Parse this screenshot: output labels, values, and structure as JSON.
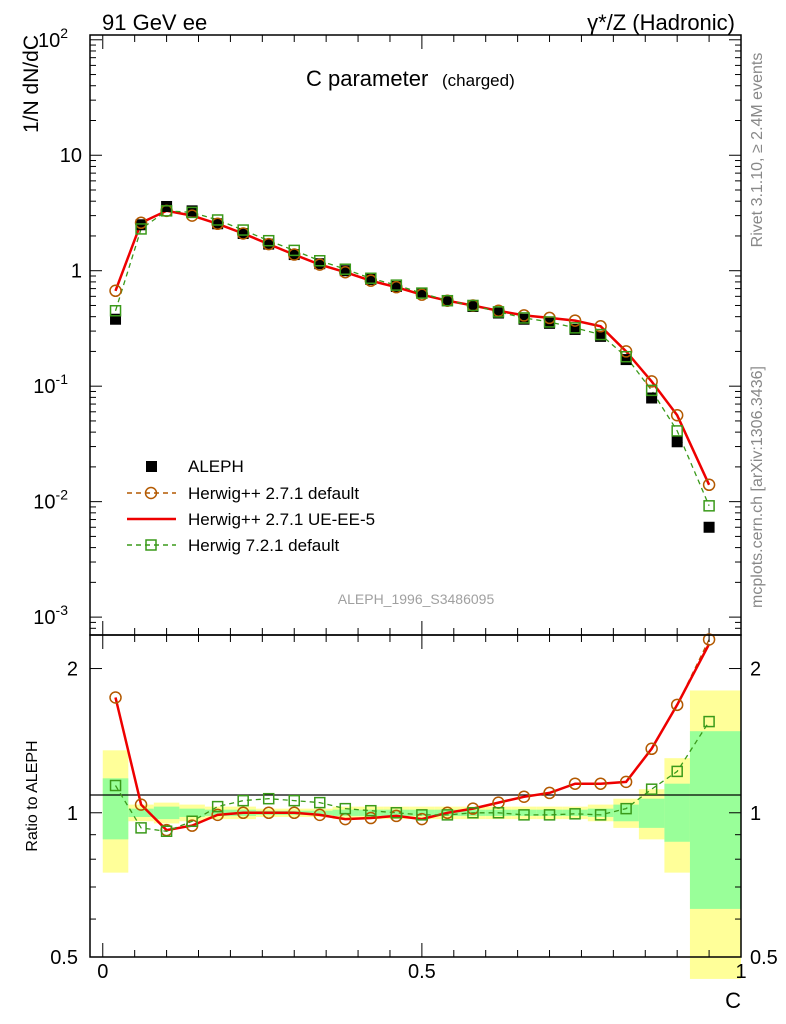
{
  "header": {
    "left": "91 GeV ee",
    "right": "γ*/Z (Hadronic)"
  },
  "side": {
    "rivet": "Rivet 3.1.10, ≥ 2.4M events",
    "mcplots": "mcplots.cern.ch [arXiv:1306.3436]"
  },
  "chart_data": [
    {
      "type": "line",
      "title": "C parameter",
      "subtitle": "(charged)",
      "ylabel": "1/N dN/dC",
      "yscale": "log",
      "ylim": [
        0.0007,
        110
      ],
      "xlim": [
        -0.02,
        1.0
      ],
      "yticks": [
        {
          "v": 0.001,
          "b": "10",
          "e": "-3"
        },
        {
          "v": 0.01,
          "b": "10",
          "e": "-2"
        },
        {
          "v": 0.1,
          "b": "10",
          "e": "-1"
        },
        {
          "v": 1,
          "b": "1",
          "e": ""
        },
        {
          "v": 10,
          "b": "10",
          "e": ""
        },
        {
          "v": 100,
          "b": "10",
          "e": "2"
        }
      ],
      "watermark": "ALEPH_1996_S3486095",
      "legend_position": "bottom-left",
      "x": [
        0.02,
        0.06,
        0.1,
        0.14,
        0.18,
        0.22,
        0.26,
        0.3,
        0.34,
        0.38,
        0.42,
        0.46,
        0.5,
        0.54,
        0.58,
        0.62,
        0.66,
        0.7,
        0.74,
        0.78,
        0.82,
        0.86,
        0.9,
        0.95
      ],
      "series": [
        {
          "name": "ALEPH",
          "marker": "square-filled",
          "color": "#000000",
          "values": [
            0.38,
            2.5,
            3.6,
            3.3,
            2.55,
            2.1,
            1.7,
            1.38,
            1.15,
            1.0,
            0.84,
            0.73,
            0.64,
            0.55,
            0.49,
            0.43,
            0.38,
            0.35,
            0.31,
            0.27,
            0.17,
            0.079,
            0.033,
            0.006
          ]
        },
        {
          "name": "Herwig++ 2.7.1 default",
          "marker": "circle-open",
          "color": "#b35900",
          "dash": "5,4",
          "values": [
            0.67,
            2.6,
            3.3,
            3.0,
            2.55,
            2.1,
            1.7,
            1.38,
            1.13,
            0.97,
            0.82,
            0.72,
            0.62,
            0.55,
            0.5,
            0.45,
            0.41,
            0.39,
            0.37,
            0.33,
            0.2,
            0.11,
            0.056,
            0.014
          ]
        },
        {
          "name": "Herwig++ 2.7.1 UE-EE-5",
          "marker": "none",
          "color": "#ee0000",
          "width": 2.5,
          "values": [
            0.67,
            2.6,
            3.3,
            3.0,
            2.55,
            2.1,
            1.7,
            1.38,
            1.13,
            0.97,
            0.82,
            0.72,
            0.62,
            0.55,
            0.5,
            0.45,
            0.41,
            0.39,
            0.37,
            0.33,
            0.2,
            0.11,
            0.056,
            0.014
          ]
        },
        {
          "name": "Herwig 7.2.1 default",
          "marker": "square-open",
          "color": "#3a9a1a",
          "dash": "5,4",
          "values": [
            0.45,
            2.3,
            3.3,
            3.2,
            2.75,
            2.25,
            1.82,
            1.5,
            1.22,
            1.03,
            0.86,
            0.75,
            0.64,
            0.55,
            0.5,
            0.44,
            0.39,
            0.36,
            0.32,
            0.28,
            0.18,
            0.092,
            0.041,
            0.0092
          ]
        }
      ]
    },
    {
      "type": "line",
      "ylabel": "Ratio to ALEPH",
      "xlabel": "C",
      "ylim": [
        0.5,
        2.0
      ],
      "xlim": [
        -0.02,
        1.0
      ],
      "yticks": [
        0.5,
        1,
        2
      ],
      "xticks": [
        {
          "v": 0,
          "label": "0"
        },
        {
          "v": 0.5,
          "label": "0.5"
        },
        {
          "v": 1,
          "label": "1"
        }
      ],
      "bands": {
        "edges": [
          0.0,
          0.04,
          0.08,
          0.12,
          0.16,
          0.2,
          0.24,
          0.28,
          0.32,
          0.36,
          0.4,
          0.44,
          0.48,
          0.52,
          0.56,
          0.6,
          0.64,
          0.68,
          0.72,
          0.76,
          0.8,
          0.84,
          0.88,
          0.92,
          1.0
        ],
        "yellow": [
          [
            0.75,
            1.35
          ],
          [
            0.96,
            1.04
          ],
          [
            0.95,
            1.05
          ],
          [
            0.96,
            1.04
          ],
          [
            0.97,
            1.03
          ],
          [
            0.97,
            1.03
          ],
          [
            0.98,
            1.02
          ],
          [
            0.98,
            1.02
          ],
          [
            0.98,
            1.02
          ],
          [
            0.97,
            1.03
          ],
          [
            0.97,
            1.03
          ],
          [
            0.97,
            1.03
          ],
          [
            0.97,
            1.03
          ],
          [
            0.97,
            1.03
          ],
          [
            0.97,
            1.03
          ],
          [
            0.97,
            1.03
          ],
          [
            0.97,
            1.03
          ],
          [
            0.97,
            1.03
          ],
          [
            0.97,
            1.03
          ],
          [
            0.96,
            1.04
          ],
          [
            0.93,
            1.07
          ],
          [
            0.88,
            1.12
          ],
          [
            0.75,
            1.3
          ],
          [
            0.45,
            1.8
          ]
        ],
        "green": [
          [
            0.88,
            1.18
          ],
          [
            0.98,
            1.02
          ],
          [
            0.97,
            1.03
          ],
          [
            0.98,
            1.02
          ],
          [
            0.985,
            1.015
          ],
          [
            0.985,
            1.015
          ],
          [
            0.99,
            1.01
          ],
          [
            0.99,
            1.01
          ],
          [
            0.99,
            1.01
          ],
          [
            0.985,
            1.015
          ],
          [
            0.985,
            1.015
          ],
          [
            0.985,
            1.015
          ],
          [
            0.985,
            1.015
          ],
          [
            0.985,
            1.015
          ],
          [
            0.985,
            1.015
          ],
          [
            0.985,
            1.015
          ],
          [
            0.985,
            1.015
          ],
          [
            0.985,
            1.015
          ],
          [
            0.985,
            1.015
          ],
          [
            0.98,
            1.02
          ],
          [
            0.96,
            1.04
          ],
          [
            0.93,
            1.07
          ],
          [
            0.87,
            1.15
          ],
          [
            0.63,
            1.48
          ]
        ]
      },
      "x": [
        0.02,
        0.06,
        0.1,
        0.14,
        0.18,
        0.22,
        0.26,
        0.3,
        0.34,
        0.38,
        0.42,
        0.46,
        0.5,
        0.54,
        0.58,
        0.62,
        0.66,
        0.7,
        0.74,
        0.78,
        0.82,
        0.86,
        0.9,
        0.95
      ],
      "series": [
        {
          "name": "Herwig++ 2.7.1 default",
          "marker": "circle-open",
          "color": "#b35900",
          "values": [
            1.74,
            1.04,
            0.92,
            0.94,
            0.99,
            1.0,
            1.0,
            1.0,
            0.99,
            0.97,
            0.975,
            0.985,
            0.97,
            1.0,
            1.02,
            1.05,
            1.08,
            1.1,
            1.15,
            1.15,
            1.16,
            1.36,
            1.68,
            2.3
          ]
        },
        {
          "name": "Herwig++ 2.7.1 UE-EE-5",
          "marker": "none",
          "color": "#ee0000",
          "values": [
            1.74,
            1.04,
            0.92,
            0.94,
            0.99,
            1.0,
            1.0,
            1.0,
            0.99,
            0.97,
            0.975,
            0.985,
            0.97,
            1.0,
            1.02,
            1.05,
            1.08,
            1.1,
            1.15,
            1.15,
            1.16,
            1.36,
            1.68,
            2.25
          ]
        },
        {
          "name": "Herwig 7.2.1 default",
          "marker": "square-open",
          "color": "#3a9a1a",
          "values": [
            1.14,
            0.93,
            0.915,
            0.96,
            1.03,
            1.06,
            1.07,
            1.06,
            1.05,
            1.02,
            1.01,
            1.0,
            0.99,
            0.99,
            1.0,
            1.0,
            0.99,
            0.99,
            0.995,
            0.99,
            1.02,
            1.12,
            1.22,
            1.55
          ]
        }
      ]
    }
  ]
}
